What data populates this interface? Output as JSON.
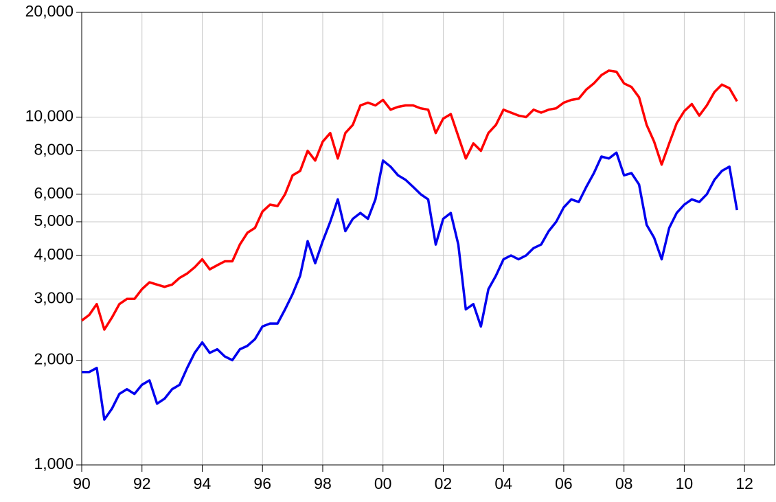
{
  "chart_data": {
    "type": "line",
    "x": [
      1990,
      1990.25,
      1990.5,
      1990.75,
      1991,
      1991.25,
      1991.5,
      1991.75,
      1992,
      1992.25,
      1992.5,
      1992.75,
      1993,
      1993.25,
      1993.5,
      1993.75,
      1994,
      1994.25,
      1994.5,
      1994.75,
      1995,
      1995.25,
      1995.5,
      1995.75,
      1996,
      1996.25,
      1996.5,
      1996.75,
      1997,
      1997.25,
      1997.5,
      1997.75,
      1998,
      1998.25,
      1998.5,
      1998.75,
      1999,
      1999.25,
      1999.5,
      1999.75,
      2000,
      2000.25,
      2000.5,
      2000.75,
      2001,
      2001.25,
      2001.5,
      2001.75,
      2002,
      2002.25,
      2002.5,
      2002.75,
      2003,
      2003.25,
      2003.5,
      2003.75,
      2004,
      2004.25,
      2004.5,
      2004.75,
      2005,
      2005.25,
      2005.5,
      2005.75,
      2006,
      2006.25,
      2006.5,
      2006.75,
      2007,
      2007.25,
      2007.5,
      2007.75,
      2008,
      2008.25,
      2008.5,
      2008.75,
      2009,
      2009.25,
      2009.5,
      2009.75,
      2010,
      2010.25,
      2010.5,
      2010.75,
      2011,
      2011.25,
      2011.5,
      2011.75
    ],
    "series": [
      {
        "color": "#ff0000",
        "values": [
          2600,
          2700,
          2900,
          2450,
          2650,
          2900,
          3000,
          3000,
          3200,
          3350,
          3300,
          3250,
          3300,
          3450,
          3550,
          3700,
          3900,
          3650,
          3750,
          3850,
          3850,
          4300,
          4650,
          4800,
          5350,
          5600,
          5550,
          6000,
          6800,
          7000,
          8000,
          7500,
          8500,
          9000,
          7600,
          9000,
          9500,
          10800,
          11000,
          10800,
          11200,
          10500,
          10700,
          10800,
          10800,
          10600,
          10500,
          9000,
          9900,
          10200,
          8800,
          7600,
          8400,
          8000,
          9000,
          9500,
          10500,
          10300,
          10100,
          10000,
          10500,
          10300,
          10500,
          10600,
          11000,
          11200,
          11300,
          12000,
          12500,
          13200,
          13600,
          13500,
          12500,
          12200,
          11400,
          9500,
          8500,
          7300,
          8400,
          9600,
          10400,
          10900,
          10100,
          10800,
          11800,
          12400,
          12100,
          11100
        ]
      },
      {
        "color": "#0000ee",
        "values": [
          1850,
          1850,
          1900,
          1350,
          1450,
          1600,
          1650,
          1600,
          1700,
          1750,
          1500,
          1550,
          1650,
          1700,
          1900,
          2100,
          2250,
          2100,
          2150,
          2050,
          2000,
          2150,
          2200,
          2300,
          2500,
          2550,
          2550,
          2800,
          3100,
          3500,
          4400,
          3800,
          4400,
          5000,
          5800,
          4700,
          5100,
          5300,
          5100,
          5800,
          7500,
          7200,
          6800,
          6600,
          6300,
          6000,
          5800,
          4300,
          5100,
          5300,
          4300,
          2800,
          2900,
          2500,
          3200,
          3500,
          3900,
          4000,
          3900,
          4000,
          4200,
          4300,
          4700,
          5000,
          5500,
          5800,
          5700,
          6300,
          6900,
          7700,
          7600,
          7900,
          6800,
          6900,
          6400,
          4900,
          4500,
          3900,
          4800,
          5300,
          5600,
          5800,
          5700,
          6000,
          6600,
          7000,
          7200,
          5400
        ]
      }
    ],
    "xlim": [
      1990,
      2013
    ],
    "xticks": [
      {
        "value": 1990,
        "label": "90"
      },
      {
        "value": 1992,
        "label": "92"
      },
      {
        "value": 1994,
        "label": "94"
      },
      {
        "value": 1996,
        "label": "96"
      },
      {
        "value": 1998,
        "label": "98"
      },
      {
        "value": 2000,
        "label": "00"
      },
      {
        "value": 2002,
        "label": "02"
      },
      {
        "value": 2004,
        "label": "04"
      },
      {
        "value": 2006,
        "label": "06"
      },
      {
        "value": 2008,
        "label": "08"
      },
      {
        "value": 2010,
        "label": "10"
      },
      {
        "value": 2012,
        "label": "12"
      }
    ],
    "ylim": [
      1000,
      20000
    ],
    "yticks": [
      {
        "value": 1000,
        "label": "1,000"
      },
      {
        "value": 2000,
        "label": "2,000"
      },
      {
        "value": 3000,
        "label": "3,000"
      },
      {
        "value": 4000,
        "label": "4,000"
      },
      {
        "value": 5000,
        "label": "5,000"
      },
      {
        "value": 6000,
        "label": "6,000"
      },
      {
        "value": 8000,
        "label": "8,000"
      },
      {
        "value": 10000,
        "label": "10,000"
      },
      {
        "value": 20000,
        "label": "20,000"
      }
    ],
    "log_y": true,
    "grid": true
  }
}
